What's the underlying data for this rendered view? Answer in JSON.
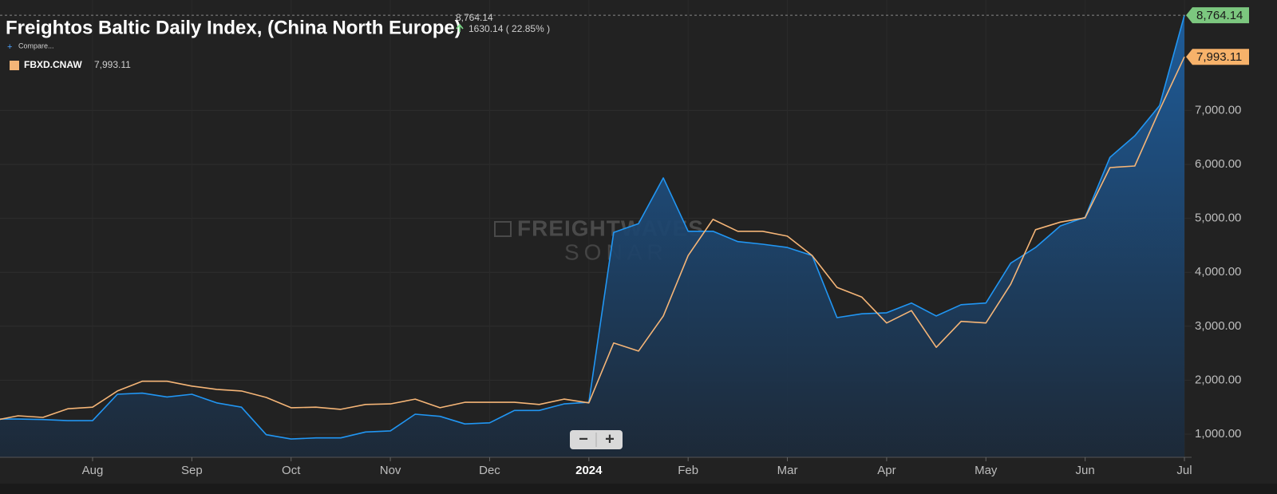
{
  "chart_data": {
    "type": "line",
    "title": "Freightos Baltic Daily Index, (China North Europe)",
    "change_label": "1630.14 ( 22.85% )",
    "compare": "Compare...",
    "watermark": [
      "FREIGHTWAVES",
      "SONAR"
    ],
    "zoom_controls": [
      "−",
      "+"
    ],
    "categories": [
      null,
      null,
      null,
      null,
      "Aug",
      null,
      null,
      null,
      "Sep",
      null,
      null,
      null,
      "Oct",
      null,
      null,
      null,
      "Nov",
      null,
      null,
      null,
      "Dec",
      null,
      null,
      null,
      "2024",
      null,
      null,
      null,
      "Feb",
      null,
      null,
      null,
      "Mar",
      null,
      null,
      null,
      "Apr",
      null,
      null,
      null,
      "May",
      null,
      null,
      null,
      "Jun",
      null,
      null,
      null,
      "Jul"
    ],
    "series": [
      {
        "color": "#2196f3",
        "area": true,
        "values": [
          1280,
          1280,
          1270,
          1250,
          1250,
          1740,
          1760,
          1690,
          1740,
          1580,
          1500,
          990,
          910,
          930,
          930,
          1040,
          1060,
          1370,
          1330,
          1190,
          1210,
          1440,
          1440,
          1560,
          1590,
          4740,
          4900,
          5750,
          4760,
          4760,
          4570,
          4520,
          4460,
          4310,
          3160,
          3230,
          3250,
          3430,
          3190,
          3400,
          3430,
          4170,
          4460,
          4860,
          5020,
          6130,
          6530,
          7090,
          8764.14
        ],
        "value_labels": [
          null,
          null,
          null,
          null,
          null,
          null,
          null,
          null,
          null,
          null,
          null,
          null,
          null,
          null,
          null,
          null,
          null,
          null,
          null,
          null,
          null,
          null,
          null,
          null,
          null,
          null,
          null,
          null,
          null,
          null,
          null,
          null,
          null,
          null,
          null,
          null,
          null,
          null,
          null,
          null,
          null,
          null,
          null,
          null,
          null,
          null,
          null,
          null,
          "8,764.14"
        ]
      },
      {
        "name": "FBXD.CNAW",
        "color": "#f5b577",
        "values": [
          1250,
          1340,
          1310,
          1470,
          1500,
          1800,
          1980,
          1980,
          1890,
          1830,
          1800,
          1680,
          1490,
          1500,
          1460,
          1550,
          1560,
          1650,
          1490,
          1590,
          1590,
          1590,
          1550,
          1650,
          1580,
          2690,
          2540,
          3190,
          4310,
          4980,
          4760,
          4760,
          4670,
          4310,
          3720,
          3540,
          3060,
          3290,
          2610,
          3090,
          3060,
          3780,
          4790,
          4930,
          5010,
          5940,
          5970,
          7010,
          7993.11
        ],
        "value_labels": [
          null,
          null,
          null,
          null,
          null,
          null,
          null,
          null,
          null,
          null,
          null,
          null,
          null,
          null,
          null,
          null,
          null,
          null,
          null,
          null,
          null,
          null,
          null,
          null,
          null,
          null,
          null,
          null,
          null,
          null,
          null,
          null,
          null,
          null,
          null,
          null,
          null,
          null,
          null,
          null,
          null,
          null,
          null,
          null,
          null,
          null,
          null,
          null,
          "7,993.11"
        ]
      }
    ],
    "ylim": [
      571,
      9047
    ],
    "yticks": [
      {
        "value": 1000,
        "label": "1,000.00"
      },
      {
        "value": 2000,
        "label": "2,000.00"
      },
      {
        "value": 3000,
        "label": "3,000.00"
      },
      {
        "value": 4000,
        "label": "4,000.00"
      },
      {
        "value": 5000,
        "label": "5,000.00"
      },
      {
        "value": 6000,
        "label": "6,000.00"
      },
      {
        "value": 7000,
        "label": "7,000.00"
      }
    ],
    "grid": true
  }
}
